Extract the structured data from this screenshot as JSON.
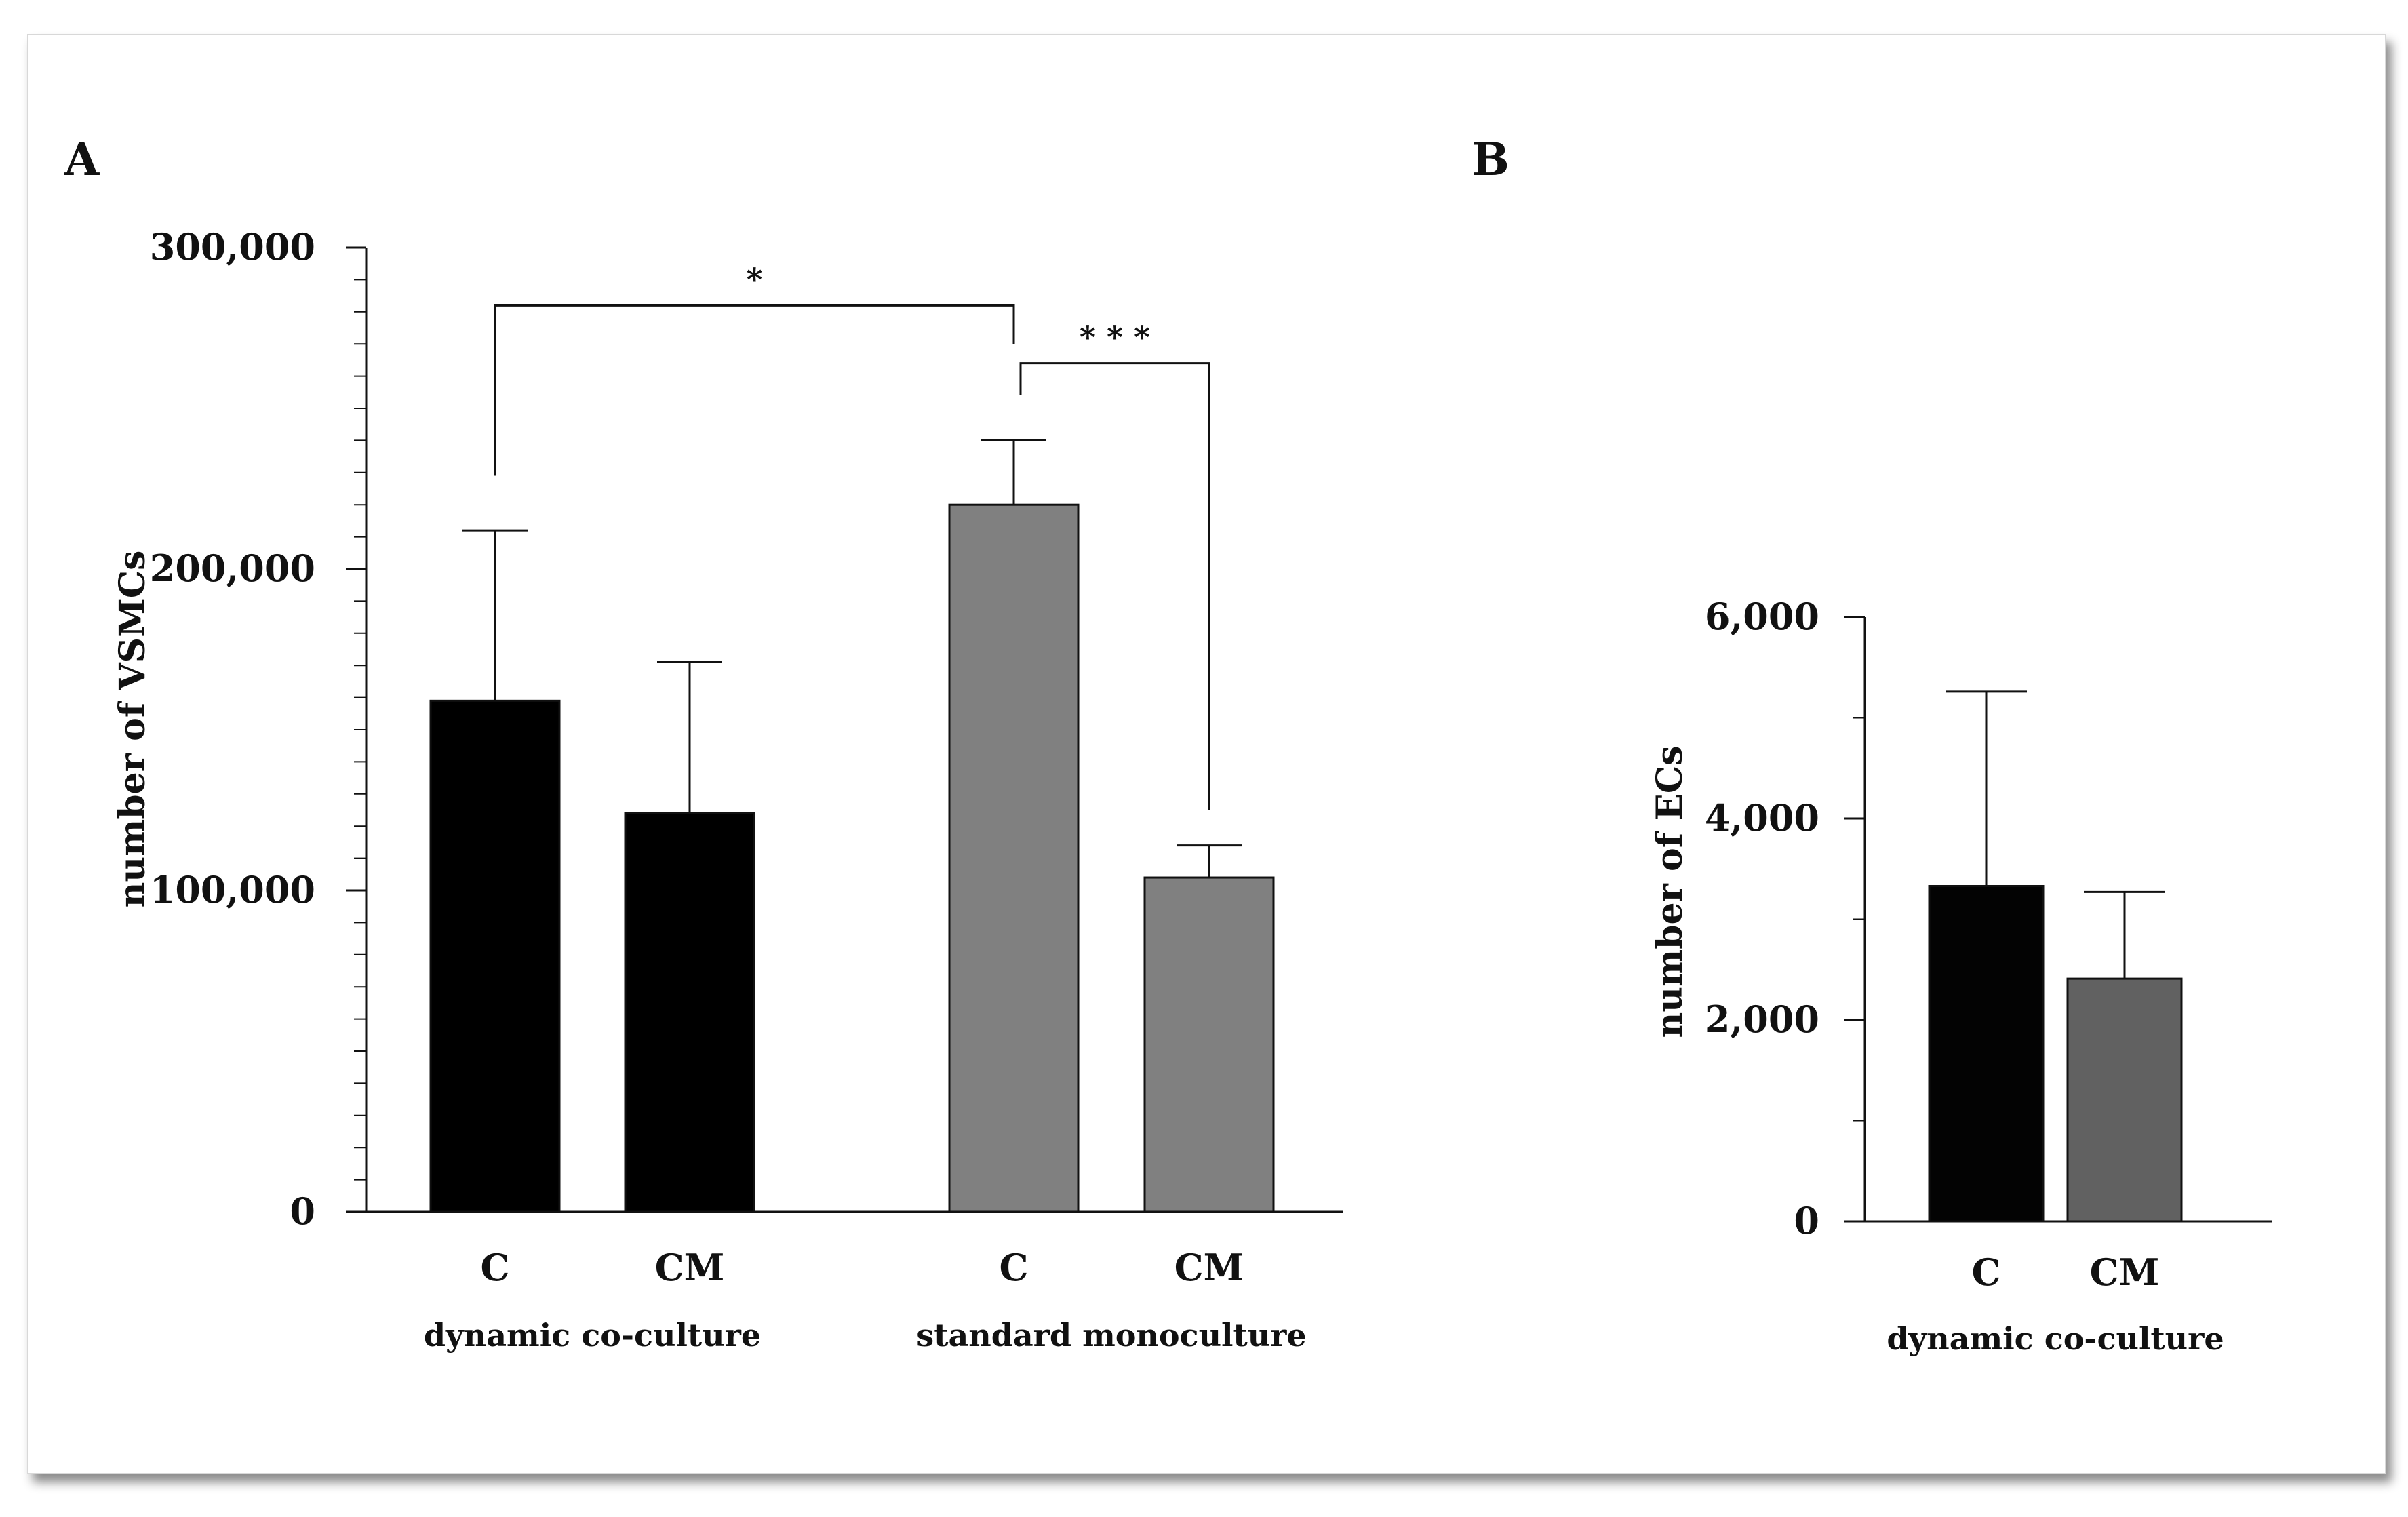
{
  "panels": [
    {
      "label": "A"
    },
    {
      "label": "B"
    }
  ],
  "chart_data": [
    {
      "type": "bar",
      "panel": "A",
      "ylabel": "number of VSMCs",
      "xlabel": "",
      "ylim": [
        0,
        300000
      ],
      "yticks": [
        {
          "value": 0,
          "label": "0"
        },
        {
          "value": 100000,
          "label": "100,000"
        },
        {
          "value": 200000,
          "label": "200,000"
        },
        {
          "value": 300000,
          "label": "300,000"
        }
      ],
      "minor_tick_step": 10000,
      "groups": [
        {
          "name": "dynamic co-culture",
          "categories": [
            "C",
            "CM"
          ]
        },
        {
          "name": "standard monoculture",
          "categories": [
            "C",
            "CM"
          ]
        }
      ],
      "bars": [
        {
          "group": 0,
          "category": "C",
          "value": 159000,
          "error": 53000,
          "color": "#000000"
        },
        {
          "group": 0,
          "category": "CM",
          "value": 124000,
          "error": 47000,
          "color": "#000000"
        },
        {
          "group": 1,
          "category": "C",
          "value": 220000,
          "error": 20000,
          "color": "#808080"
        },
        {
          "group": 1,
          "category": "CM",
          "value": 104000,
          "error": 10000,
          "color": "#808080"
        }
      ],
      "significance": [
        {
          "from": 0,
          "to": 2,
          "label": "*"
        },
        {
          "from": 2,
          "to": 3,
          "label": "* * *"
        }
      ],
      "grid": false
    },
    {
      "type": "bar",
      "panel": "B",
      "ylabel": "number of ECs",
      "xlabel": "",
      "ylim": [
        0,
        6000
      ],
      "yticks": [
        {
          "value": 0,
          "label": "0"
        },
        {
          "value": 2000,
          "label": "2,000"
        },
        {
          "value": 4000,
          "label": "4,000"
        },
        {
          "value": 6000,
          "label": "6,000"
        }
      ],
      "minor_tick_step": 1000,
      "groups": [
        {
          "name": "dynamic co-culture",
          "categories": [
            "C",
            "CM"
          ]
        }
      ],
      "bars": [
        {
          "group": 0,
          "category": "C",
          "value": 3330,
          "error": 1930,
          "color": "#030303"
        },
        {
          "group": 0,
          "category": "CM",
          "value": 2410,
          "error": 860,
          "color": "#616161"
        }
      ],
      "significance": [],
      "grid": false
    }
  ]
}
